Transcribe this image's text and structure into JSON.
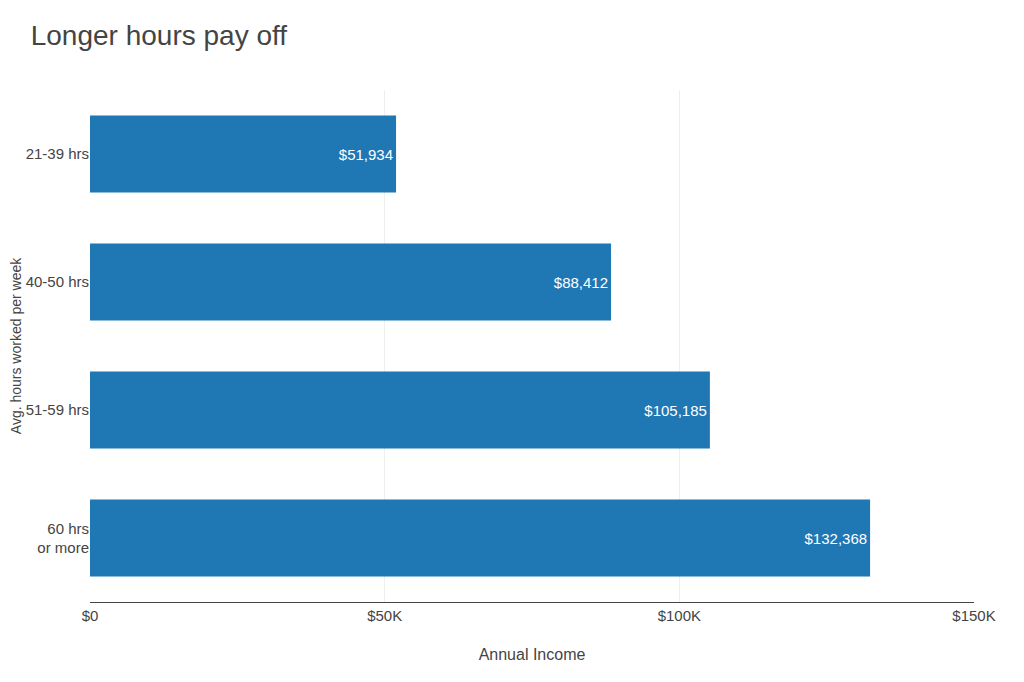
{
  "chart_data": {
    "type": "bar",
    "orientation": "horizontal",
    "title": "Longer hours pay off",
    "xlabel": "Annual Income",
    "ylabel": "Avg. hours worked per week",
    "categories": [
      "21-39 hrs",
      "40-50 hrs",
      "51-59 hrs",
      "60 hrs\nor more"
    ],
    "values": [
      51934,
      88412,
      105185,
      132368
    ],
    "value_labels": [
      "$51,934",
      "$88,412",
      "$105,185",
      "$132,368"
    ],
    "data_labels": true,
    "xlim": [
      0,
      150000
    ],
    "xticks": [
      {
        "value": 0,
        "label": "$0"
      },
      {
        "value": 50000,
        "label": "$50K"
      },
      {
        "value": 100000,
        "label": "$100K"
      },
      {
        "value": 150000,
        "label": "$150K"
      }
    ],
    "grid": true
  }
}
